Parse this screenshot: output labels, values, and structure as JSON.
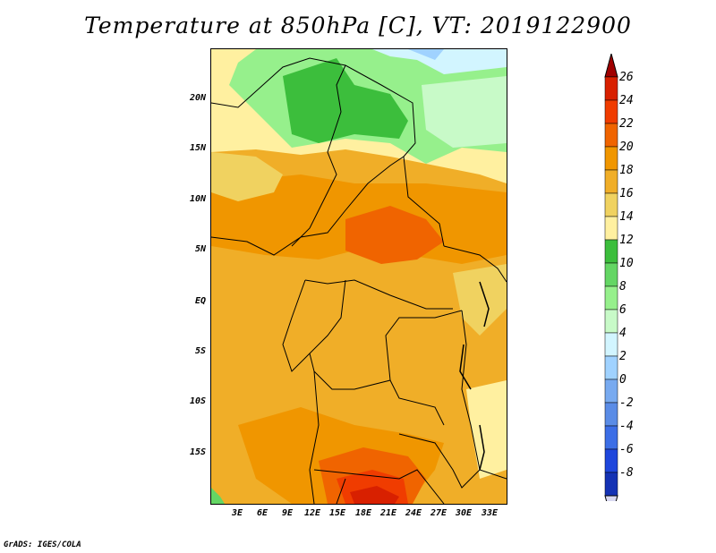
{
  "title": "Temperature at 850hPa [C], VT: 2019122900",
  "credit": "GrADS: IGES/COLA",
  "map": {
    "variable": "Temperature at 850hPa",
    "units": "C",
    "valid_time": "2019122900",
    "lat_range": [
      -20,
      24
    ],
    "lon_range": [
      0,
      35
    ],
    "lat_ticks": [
      "20N",
      "15N",
      "10N",
      "5N",
      "EQ",
      "5S",
      "10S",
      "15S"
    ],
    "lon_ticks": [
      "3E",
      "6E",
      "9E",
      "12E",
      "15E",
      "18E",
      "21E",
      "24E",
      "27E",
      "30E",
      "33E"
    ]
  },
  "colorbar": {
    "levels": [
      "26",
      "24",
      "22",
      "20",
      "18",
      "16",
      "14",
      "12",
      "10",
      "8",
      "6",
      "4",
      "2",
      "0",
      "-2",
      "-4",
      "-6",
      "-8"
    ],
    "colors": [
      "#a00000",
      "#d82000",
      "#f03c00",
      "#f06400",
      "#f09600",
      "#f0ae28",
      "#f0d260",
      "#fff0a0",
      "#3cbe3c",
      "#64d664",
      "#96f08c",
      "#c8fac8",
      "#d2f5ff",
      "#a0d2ff",
      "#78aaf0",
      "#5a8ce6",
      "#3c6ee6",
      "#1e46dc",
      "#1432b4",
      "#0a1478"
    ]
  }
}
